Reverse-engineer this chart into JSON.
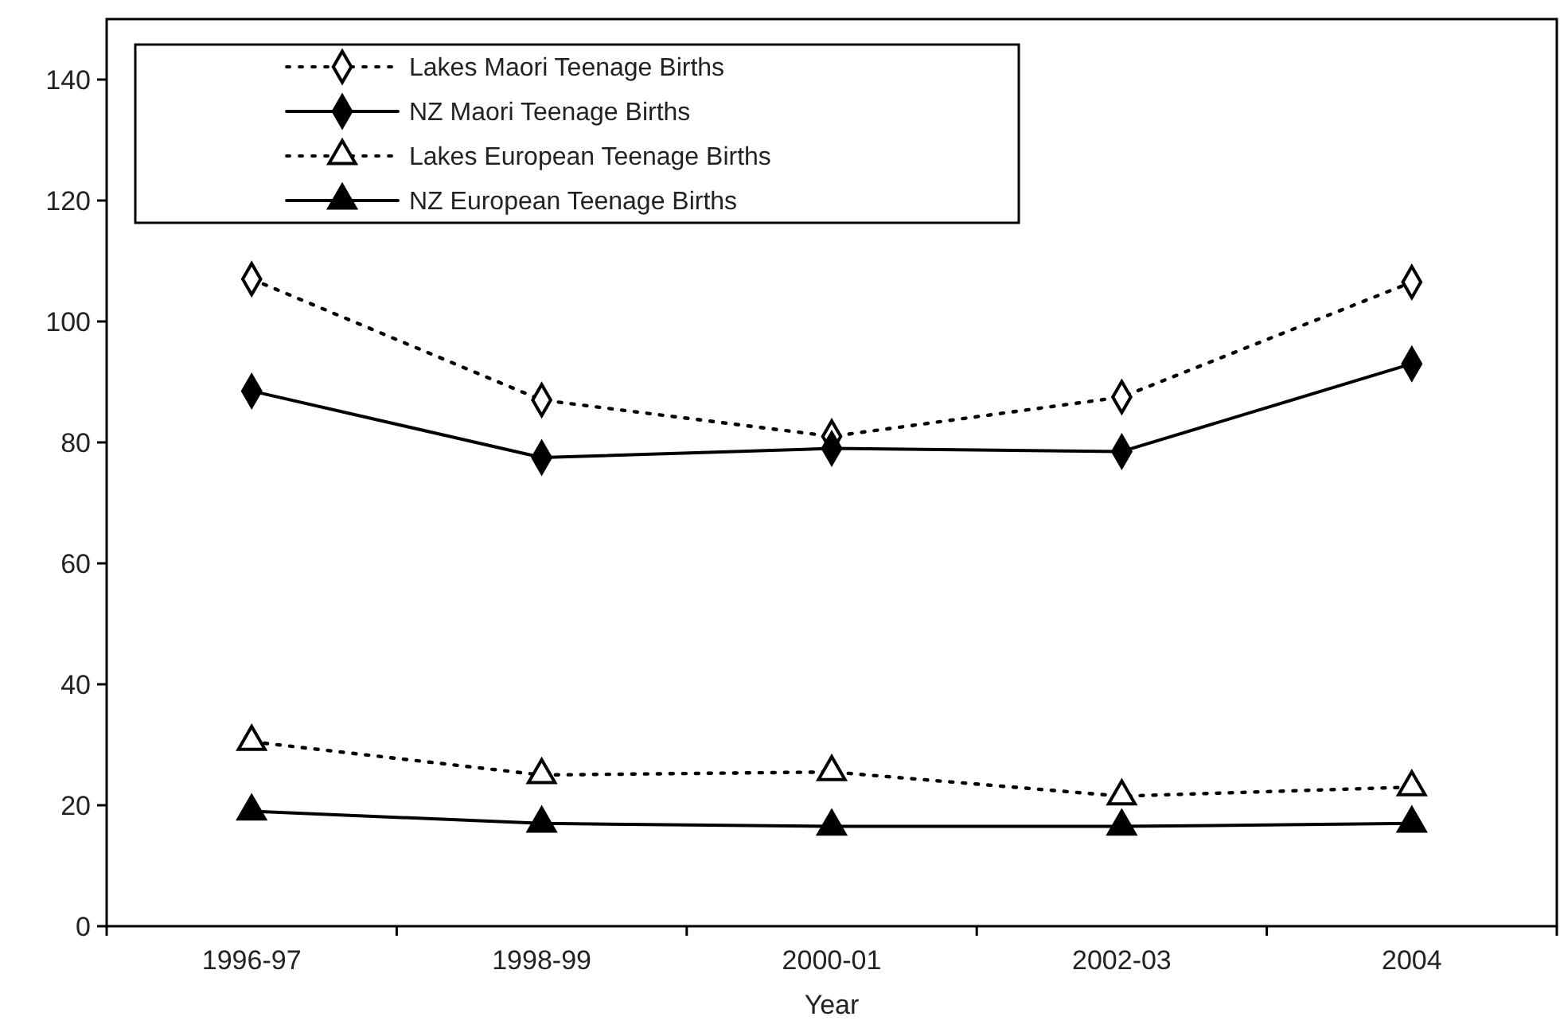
{
  "chart_data": {
    "type": "line",
    "xlabel": "Year",
    "categories": [
      "1996-97",
      "1998-99",
      "2000-01",
      "2002-03",
      "2004"
    ],
    "ylim": [
      0,
      150
    ],
    "yticks": [
      0,
      20,
      40,
      60,
      80,
      100,
      120,
      140
    ],
    "grid": false,
    "legend": "top left",
    "series": [
      {
        "name": "Lakes Maori Teenage Births",
        "color": "#000000",
        "marker": "diamond",
        "line_style": "dotted",
        "values": [
          107,
          87,
          81,
          87.5,
          106.5
        ]
      },
      {
        "name": "NZ Maori Teenage Births",
        "color": "#000000",
        "marker": "diamond",
        "line_style": "solid",
        "values": [
          88.5,
          77.5,
          79,
          78.5,
          93
        ]
      },
      {
        "name": "Lakes European Teenage Births",
        "color": "#000000",
        "marker": "triangle",
        "line_style": "dotted",
        "values": [
          30.5,
          25,
          25.5,
          21.5,
          23
        ]
      },
      {
        "name": "NZ European Teenage Births",
        "color": "#000000",
        "marker": "triangle",
        "line_style": "solid",
        "values": [
          19,
          17,
          16.5,
          16.5,
          17
        ]
      }
    ]
  }
}
